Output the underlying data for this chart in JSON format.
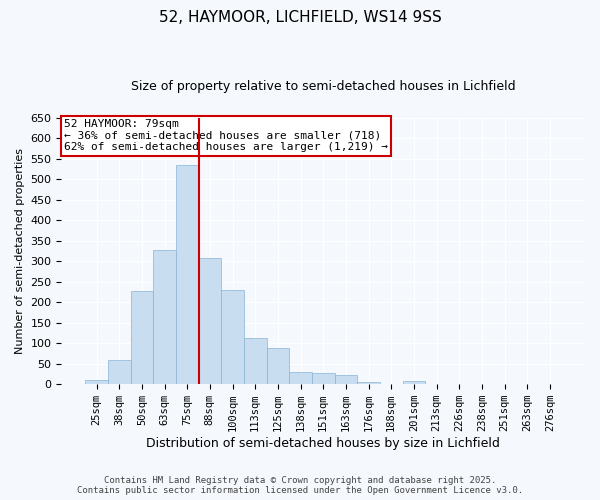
{
  "title": "52, HAYMOOR, LICHFIELD, WS14 9SS",
  "subtitle": "Size of property relative to semi-detached houses in Lichfield",
  "xlabel": "Distribution of semi-detached houses by size in Lichfield",
  "ylabel": "Number of semi-detached properties",
  "categories": [
    "25sqm",
    "38sqm",
    "50sqm",
    "63sqm",
    "75sqm",
    "88sqm",
    "100sqm",
    "113sqm",
    "125sqm",
    "138sqm",
    "151sqm",
    "163sqm",
    "176sqm",
    "188sqm",
    "201sqm",
    "213sqm",
    "226sqm",
    "238sqm",
    "251sqm",
    "263sqm",
    "276sqm"
  ],
  "values": [
    10,
    60,
    228,
    328,
    535,
    307,
    230,
    113,
    88,
    30,
    27,
    22,
    5,
    0,
    7,
    0,
    0,
    0,
    0,
    0,
    0
  ],
  "bar_color": "#c8ddf0",
  "bar_edge_color": "#8ab4d4",
  "vline_color": "#cc0000",
  "annotation_title": "52 HAYMOOR: 79sqm",
  "annotation_line1": "← 36% of semi-detached houses are smaller (718)",
  "annotation_line2": "62% of semi-detached houses are larger (1,219) →",
  "annotation_box_edgecolor": "#cc0000",
  "ylim": [
    0,
    650
  ],
  "yticks": [
    0,
    50,
    100,
    150,
    200,
    250,
    300,
    350,
    400,
    450,
    500,
    550,
    600,
    650
  ],
  "footer1": "Contains HM Land Registry data © Crown copyright and database right 2025.",
  "footer2": "Contains public sector information licensed under the Open Government Licence v3.0.",
  "bg_color": "#f5f8fc",
  "grid_color": "#ffffff",
  "title_fontsize": 11,
  "subtitle_fontsize": 9
}
